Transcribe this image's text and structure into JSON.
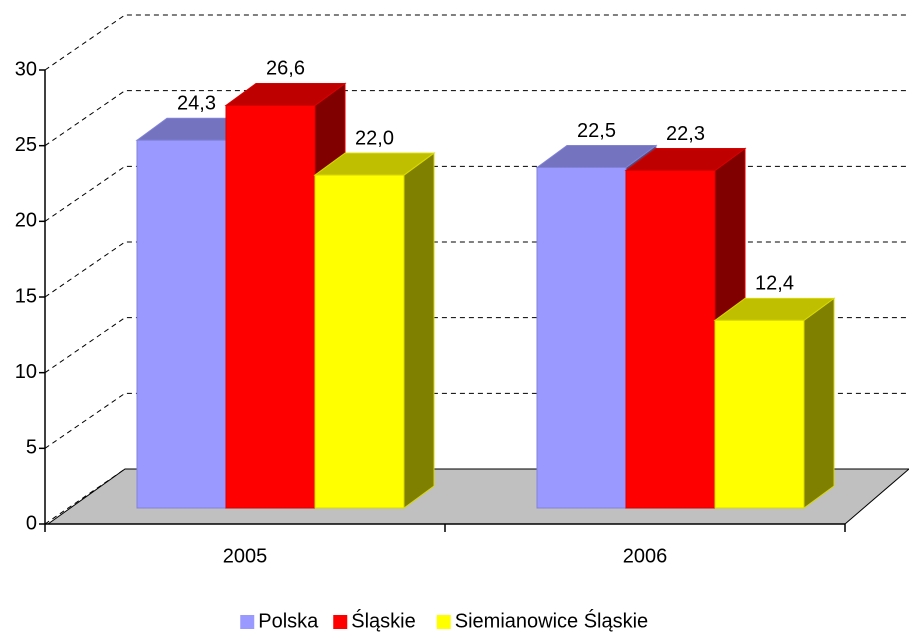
{
  "chart_data": {
    "type": "bar3d",
    "categories": [
      "2005",
      "2006"
    ],
    "series": [
      {
        "name": "Polska",
        "color": "#9999ff",
        "values": [
          24.3,
          22.5
        ],
        "value_labels": [
          "24,3",
          "22,5"
        ]
      },
      {
        "name": "Śląskie",
        "color": "#ff0000",
        "values": [
          26.6,
          22.3
        ],
        "value_labels": [
          "26,6",
          "22,3"
        ]
      },
      {
        "name": "Siemianowice Śląskie",
        "color": "#ffff00",
        "values": [
          22.0,
          12.4
        ],
        "value_labels": [
          "22,0",
          "12,4"
        ]
      }
    ],
    "ylim": [
      0,
      30
    ],
    "yticks": [
      0,
      5,
      10,
      15,
      20,
      25,
      30
    ],
    "grid": true,
    "legend": "bottom"
  }
}
